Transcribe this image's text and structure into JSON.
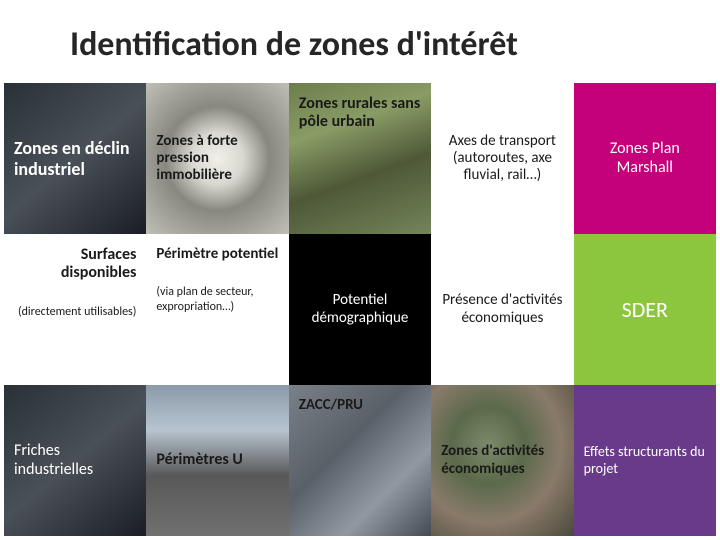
{
  "title": "Identification de zones d'intérêt",
  "grid": {
    "columns": 5,
    "rows": 3,
    "cells": [
      {
        "id": "r0c0",
        "label": "Zones en déclin industriel",
        "bg_type": "photo-dark",
        "bg_color": "#3a4048",
        "text_color": "#ffffff",
        "font_size": 18,
        "font_weight": "bold",
        "align": "left",
        "valign": "center"
      },
      {
        "id": "r0c1",
        "label": "Zones à forte pression immobilière",
        "bg_type": "photo-magnify",
        "bg_color": "#b8b8b0",
        "text_color": "#1a1a1a",
        "font_size": 15,
        "font_weight": "bold",
        "align": "left",
        "valign": "center"
      },
      {
        "id": "r0c2",
        "label": "Zones rurales sans pôle urbain",
        "bg_type": "photo-green",
        "bg_color": "#6b7d4a",
        "text_color": "#1a1a1a",
        "font_size": 16,
        "font_weight": "bold",
        "align": "left",
        "valign": "top"
      },
      {
        "id": "r0c3",
        "label": "Axes de transport (autoroutes, axe fluvial, rail…)",
        "bg_type": "solid",
        "bg_color": "#ffffff",
        "text_color": "#1a1a1a",
        "font_size": 15,
        "font_weight": "normal",
        "align": "center",
        "valign": "center"
      },
      {
        "id": "r0c4",
        "label": "Zones Plan Marshall",
        "bg_type": "solid",
        "bg_color": "#c4007a",
        "text_color": "#ffffff",
        "font_size": 16,
        "font_weight": "normal",
        "align": "center",
        "valign": "center"
      },
      {
        "id": "r1c0",
        "label": "Surfaces disponibles",
        "sublabel": "(directement utilisables)",
        "bg_type": "solid",
        "bg_color": "#ffffff",
        "text_color": "#1a1a1a",
        "font_size": 16,
        "font_weight": "bold",
        "align": "right",
        "valign": "top"
      },
      {
        "id": "r1c1",
        "label": "Périmètre potentiel",
        "sublabel": "(via plan de secteur, expropriation…)",
        "bg_type": "solid",
        "bg_color": "#ffffff",
        "text_color": "#1a1a1a",
        "font_size": 15,
        "font_weight": "bold",
        "align": "left",
        "valign": "top"
      },
      {
        "id": "r1c2",
        "label": "Potentiel démographique",
        "bg_type": "solid",
        "bg_color": "#000000",
        "text_color": "#ffffff",
        "font_size": 15,
        "font_weight": "normal",
        "align": "center",
        "valign": "center"
      },
      {
        "id": "r1c3",
        "label": "Présence d'activités économiques",
        "bg_type": "solid",
        "bg_color": "#ffffff",
        "text_color": "#1a1a1a",
        "font_size": 15,
        "font_weight": "normal",
        "align": "center",
        "valign": "center"
      },
      {
        "id": "r1c4",
        "label": "SDER",
        "bg_type": "solid",
        "bg_color": "#8cc63f",
        "text_color": "#ffffff",
        "font_size": 22,
        "font_weight": "normal",
        "align": "center",
        "valign": "center"
      },
      {
        "id": "r2c0",
        "label": "Friches industrielles",
        "bg_type": "photo-dark",
        "bg_color": "#2a3038",
        "text_color": "#ffffff",
        "font_size": 16,
        "font_weight": "normal",
        "align": "left",
        "valign": "center"
      },
      {
        "id": "r2c1",
        "label": "Périmètres U",
        "bg_type": "photo-road",
        "bg_color": "#8a9aa8",
        "text_color": "#1a1a1a",
        "font_size": 16,
        "font_weight": "bold",
        "align": "left",
        "valign": "center"
      },
      {
        "id": "r2c2",
        "label": "ZACC/PRU",
        "bg_type": "photo-gray",
        "bg_color": "#7a8088",
        "text_color": "#1a1a1a",
        "font_size": 15,
        "font_weight": "bold",
        "align": "left",
        "valign": "top"
      },
      {
        "id": "r2c3",
        "label": "Zones d'activités économiques",
        "bg_type": "photo-aerial",
        "bg_color": "#6a7a5a",
        "text_color": "#1a1a1a",
        "font_size": 15,
        "font_weight": "bold",
        "align": "left",
        "valign": "center"
      },
      {
        "id": "r2c4",
        "label": "Effets structurants du projet",
        "bg_type": "solid",
        "bg_color": "#6a3a8a",
        "text_color": "#ffffff",
        "font_size": 14,
        "font_weight": "normal",
        "align": "left",
        "valign": "center"
      }
    ]
  },
  "styling": {
    "slide_bg": "#ffffff",
    "title_color": "#262626",
    "title_fontsize": 34,
    "font_family": "Calibri"
  }
}
